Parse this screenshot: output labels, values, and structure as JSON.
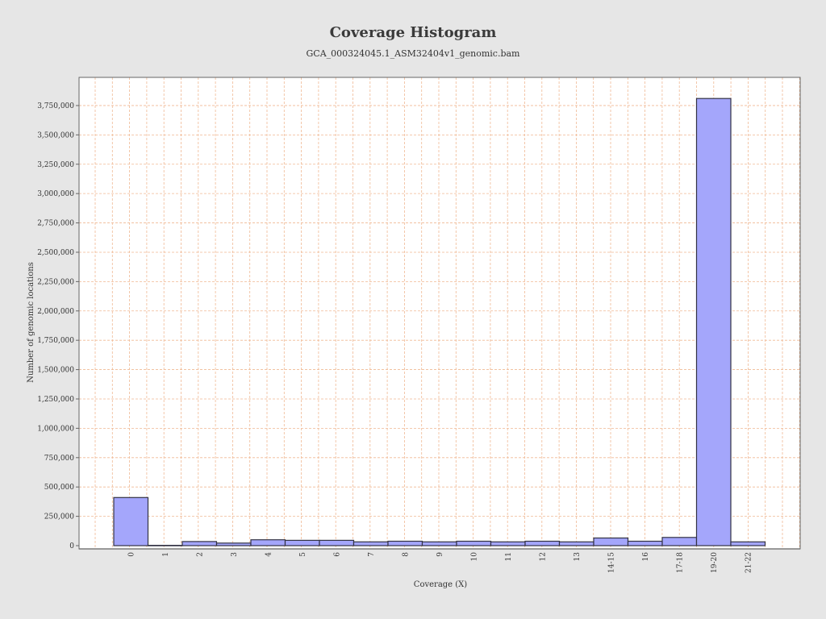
{
  "chart_data": {
    "type": "bar",
    "title": "Coverage Histogram",
    "subtitle": "GCA_000324045.1_ASM32404v1_genomic.bam",
    "xlabel": "Coverage (X)",
    "ylabel": "Number of genomic locations",
    "ylim": [
      0,
      3990000
    ],
    "grid": true,
    "yticks": [
      0,
      250000,
      500000,
      750000,
      1000000,
      1250000,
      1500000,
      1750000,
      2000000,
      2250000,
      2500000,
      2750000,
      3000000,
      3250000,
      3500000,
      3750000
    ],
    "ytick_labels": [
      "0",
      "250,000",
      "500,000",
      "750,000",
      "1,000,000",
      "1,250,000",
      "1,500,000",
      "1,750,000",
      "2,000,000",
      "2,250,000",
      "2,500,000",
      "2,750,000",
      "3,000,000",
      "3,250,000",
      "3,500,000",
      "3,750,000"
    ],
    "categories": [
      "0",
      "1",
      "2",
      "3",
      "4",
      "5",
      "6",
      "7",
      "8",
      "9",
      "10",
      "11",
      "12",
      "13",
      "14-15",
      "16",
      "17-18",
      "19-20",
      "21-22"
    ],
    "values": [
      410000,
      3000,
      35000,
      22000,
      50000,
      45000,
      45000,
      32000,
      38000,
      32000,
      38000,
      32000,
      38000,
      32000,
      65000,
      38000,
      70000,
      3810000,
      32000
    ],
    "colors": {
      "bar_fill": "#a4a6fb",
      "bar_stroke": "#333344",
      "grid": "#f0b994",
      "plot_bg": "#ffffff",
      "page_bg": "#e6e6e6"
    }
  }
}
